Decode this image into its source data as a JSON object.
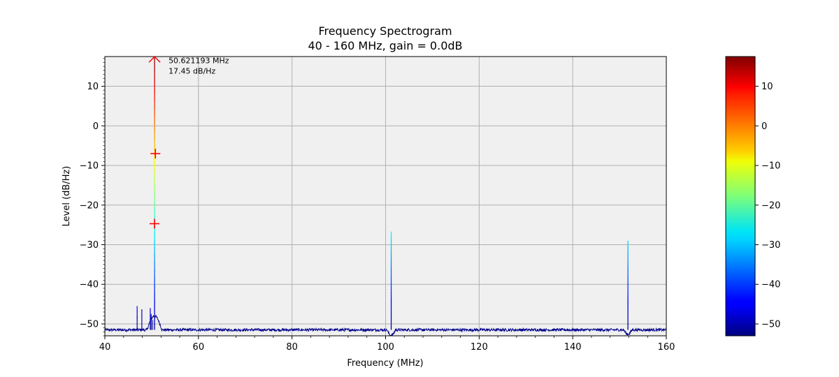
{
  "chart_data": {
    "type": "line",
    "title": "Frequency Spectrogram",
    "subtitle": "40 - 160 MHz, gain = 0.0dB",
    "xlabel": "Frequency (MHz)",
    "ylabel": "Level (dB/Hz)",
    "xlim": [
      40,
      160
    ],
    "ylim": [
      -53,
      17.5
    ],
    "x_ticks": [
      40,
      60,
      80,
      100,
      120,
      140,
      160
    ],
    "y_ticks": [
      10,
      0,
      -10,
      -20,
      -30,
      -40,
      -50
    ],
    "grid": true,
    "noise_floor_db": -51.5,
    "peaks": [
      {
        "freq": 50.621193,
        "level": 17.45
      },
      {
        "freq": 101.2,
        "level": -26.7
      },
      {
        "freq": 151.8,
        "level": -29.0
      },
      {
        "freq": 46.9,
        "level": -45.5
      },
      {
        "freq": 47.9,
        "level": -46.3
      },
      {
        "freq": 49.7,
        "level": -46.0
      },
      {
        "freq": 49.9,
        "level": -47.5
      },
      {
        "freq": 50.2,
        "level": -49.0
      }
    ],
    "markers": [
      {
        "type": "cross",
        "freq": 50.8,
        "level": -7.0
      },
      {
        "type": "cross",
        "freq": 50.6,
        "level": -24.7
      }
    ],
    "annotation": {
      "freq": 50.621193,
      "level": 17.45,
      "line1": "50.621193 MHz",
      "line2": "17.45 dB/Hz"
    },
    "colorbar": {
      "colormap": "jet",
      "range": [
        -53,
        17.5
      ],
      "ticks": [
        10,
        0,
        -10,
        -20,
        -30,
        -40,
        -50
      ]
    }
  },
  "colors": {
    "plot_background": "#f0f0f0",
    "grid": "#b0b0b0",
    "trace": "#00008b",
    "marker": "#ff0000"
  }
}
